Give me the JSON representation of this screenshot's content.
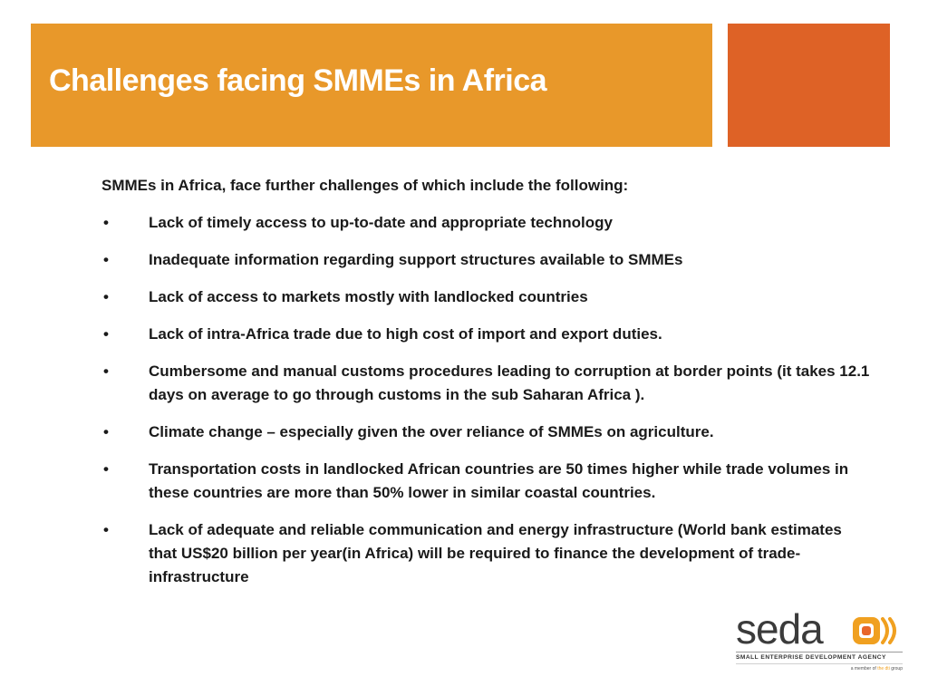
{
  "slide": {
    "title": "Challenges facing SMMEs in Africa",
    "intro": "SMMEs in Africa, face further challenges of which include the following:",
    "bullet_symbol": "•",
    "bullets": [
      "Lack of timely access to up-to-date and appropriate technology",
      "Inadequate information regarding support structures available to SMMEs",
      "Lack of access to markets mostly with landlocked countries",
      "Lack of intra-Africa trade due to high cost of import and export duties.",
      "Cumbersome and manual customs procedures leading to corruption at border points  (it takes 12.1 days on average to go through customs in the sub Saharan Africa ).",
      "Climate change – especially given the over reliance of SMMEs on agriculture.",
      "Transportation costs in landlocked African countries are 50 times higher while trade volumes in these countries are more than 50% lower in similar coastal countries.",
      "Lack of adequate and reliable communication and energy infrastructure (World bank estimates that  US$20 billion per year(in Africa) will be required to finance the development of trade-infrastructure"
    ]
  },
  "logo": {
    "wordmark": "seda",
    "tagline": "SMALL ENTERPRISE DEVELOPMENT AGENCY",
    "member_prefix": "a member of",
    "member_org": "the dti",
    "member_suffix": "group"
  },
  "colors": {
    "title_bar": "#e8982a",
    "accent_box": "#de6226",
    "logo_orange": "#f0a020"
  }
}
